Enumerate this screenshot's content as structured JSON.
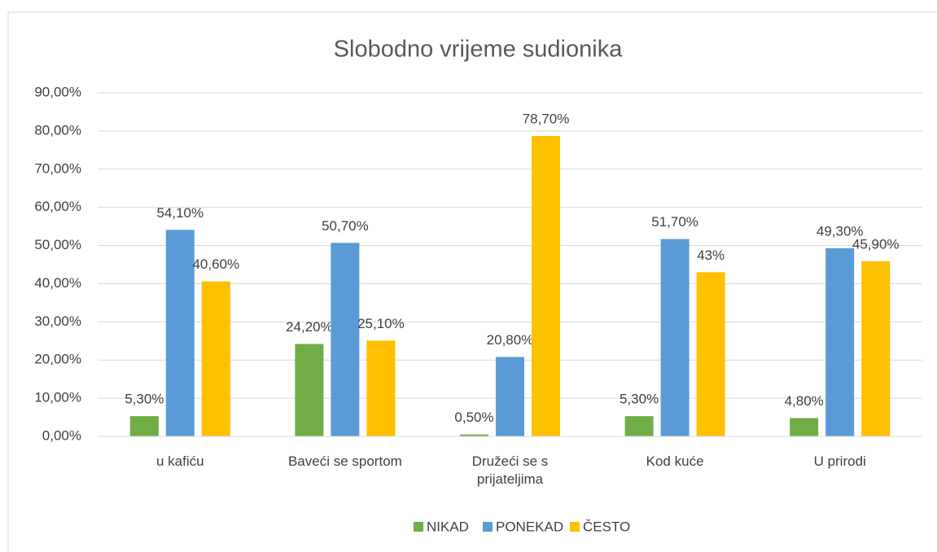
{
  "chart_data": {
    "type": "bar",
    "title": "Slobodno vrijeme sudionika",
    "categories": [
      "u kafiću",
      "Baveći se sportom",
      "Družeći se s prijateljima",
      "Kod kuće",
      "U prirodi"
    ],
    "series": [
      {
        "name": "NIKAD",
        "color": "#70ad47",
        "values": [
          5.3,
          24.2,
          0.5,
          5.3,
          4.8
        ],
        "value_labels": [
          "5,30%",
          "24,20%",
          "0,50%",
          "5,30%",
          "4,80%"
        ]
      },
      {
        "name": "PONEKAD",
        "color": "#5b9bd5",
        "values": [
          54.1,
          50.7,
          20.8,
          51.7,
          49.3
        ],
        "value_labels": [
          "54,10%",
          "50,70%",
          "20,80%",
          "51,70%",
          "49,30%"
        ]
      },
      {
        "name": "ČESTO",
        "color": "#ffc000",
        "values": [
          40.6,
          25.1,
          78.7,
          43,
          45.9
        ],
        "value_labels": [
          "40,60%",
          "25,10%",
          "78,70%",
          "43%",
          "45,90%"
        ]
      }
    ],
    "ylim": [
      0,
      90
    ],
    "yticks": [
      {
        "value": 0,
        "label": "0,00%"
      },
      {
        "value": 10,
        "label": "10,00%"
      },
      {
        "value": 20,
        "label": "20,00%"
      },
      {
        "value": 30,
        "label": "30,00%"
      },
      {
        "value": 40,
        "label": "40,00%"
      },
      {
        "value": 50,
        "label": "50,00%"
      },
      {
        "value": 60,
        "label": "60,00%"
      },
      {
        "value": 70,
        "label": "70,00%"
      },
      {
        "value": 80,
        "label": "80,00%"
      },
      {
        "value": 90,
        "label": "90,00%"
      }
    ],
    "grid": true,
    "legend": "bottom"
  }
}
